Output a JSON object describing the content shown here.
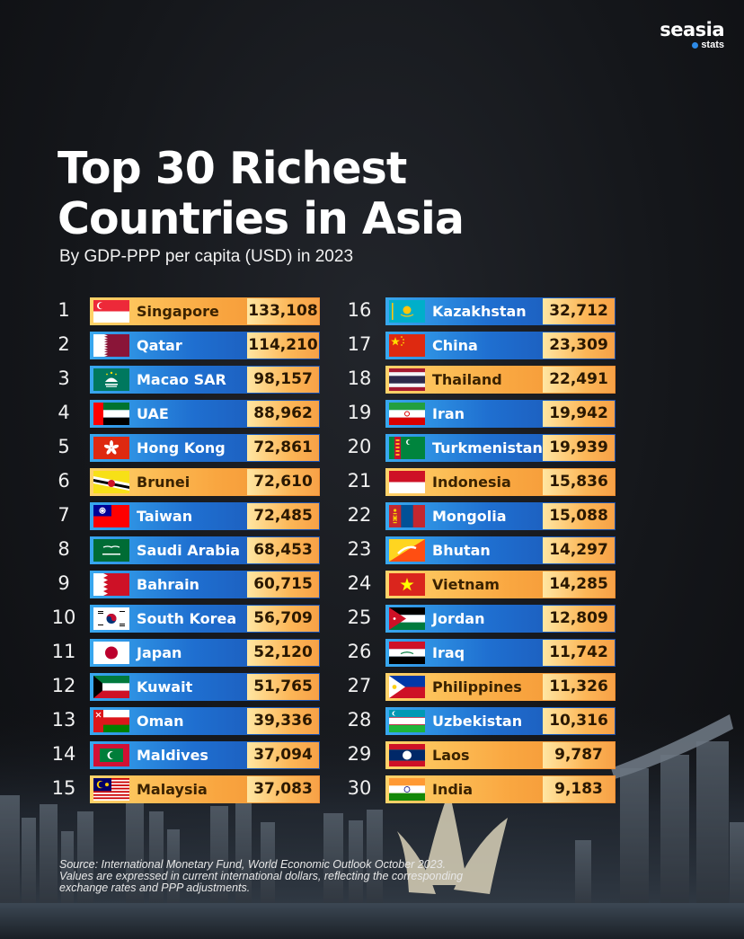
{
  "brand": {
    "name": "seasia",
    "sub": "stats",
    "accent": "#2d8ae6"
  },
  "title": {
    "line1": "Top 30 Richest",
    "line2": "Countries in Asia"
  },
  "subtitle": "By GDP-PPP per capita (USD) in 2023",
  "colors": {
    "blue_bar": "#1f6fd0",
    "orange_bar": "#f9a640",
    "value_box": "#fcb657"
  },
  "countries": [
    {
      "rank": "1",
      "name": "Singapore",
      "value": "133,108",
      "style": "orange",
      "flag": "singapore-flag"
    },
    {
      "rank": "2",
      "name": "Qatar",
      "value": "114,210",
      "style": "blue",
      "flag": "qatar-flag"
    },
    {
      "rank": "3",
      "name": "Macao SAR",
      "value": "98,157",
      "style": "blue",
      "flag": "macao-flag"
    },
    {
      "rank": "4",
      "name": "UAE",
      "value": "88,962",
      "style": "blue",
      "flag": "uae-flag"
    },
    {
      "rank": "5",
      "name": "Hong Kong",
      "value": "72,861",
      "style": "blue",
      "flag": "hong-kong-flag"
    },
    {
      "rank": "6",
      "name": "Brunei",
      "value": "72,610",
      "style": "orange",
      "flag": "brunei-flag"
    },
    {
      "rank": "7",
      "name": "Taiwan",
      "value": "72,485",
      "style": "blue",
      "flag": "taiwan-flag"
    },
    {
      "rank": "8",
      "name": "Saudi Arabia",
      "value": "68,453",
      "style": "blue",
      "flag": "saudi-arabia-flag"
    },
    {
      "rank": "9",
      "name": "Bahrain",
      "value": "60,715",
      "style": "blue",
      "flag": "bahrain-flag"
    },
    {
      "rank": "10",
      "name": "South Korea",
      "value": "56,709",
      "style": "blue",
      "flag": "south-korea-flag"
    },
    {
      "rank": "11",
      "name": "Japan",
      "value": "52,120",
      "style": "blue",
      "flag": "japan-flag"
    },
    {
      "rank": "12",
      "name": "Kuwait",
      "value": "51,765",
      "style": "blue",
      "flag": "kuwait-flag"
    },
    {
      "rank": "13",
      "name": "Oman",
      "value": "39,336",
      "style": "blue",
      "flag": "oman-flag"
    },
    {
      "rank": "14",
      "name": "Maldives",
      "value": "37,094",
      "style": "blue",
      "flag": "maldives-flag"
    },
    {
      "rank": "15",
      "name": "Malaysia",
      "value": "37,083",
      "style": "orange",
      "flag": "malaysia-flag"
    },
    {
      "rank": "16",
      "name": "Kazakhstan",
      "value": "32,712",
      "style": "blue",
      "flag": "kazakhstan-flag"
    },
    {
      "rank": "17",
      "name": "China",
      "value": "23,309",
      "style": "blue",
      "flag": "china-flag"
    },
    {
      "rank": "18",
      "name": "Thailand",
      "value": "22,491",
      "style": "orange",
      "flag": "thailand-flag"
    },
    {
      "rank": "19",
      "name": "Iran",
      "value": "19,942",
      "style": "blue",
      "flag": "iran-flag"
    },
    {
      "rank": "20",
      "name": "Turkmenistan",
      "value": "19,939",
      "style": "blue",
      "flag": "turkmenistan-flag"
    },
    {
      "rank": "21",
      "name": "Indonesia",
      "value": "15,836",
      "style": "orange",
      "flag": "indonesia-flag"
    },
    {
      "rank": "22",
      "name": "Mongolia",
      "value": "15,088",
      "style": "blue",
      "flag": "mongolia-flag"
    },
    {
      "rank": "23",
      "name": "Bhutan",
      "value": "14,297",
      "style": "blue",
      "flag": "bhutan-flag"
    },
    {
      "rank": "24",
      "name": "Vietnam",
      "value": "14,285",
      "style": "orange",
      "flag": "vietnam-flag"
    },
    {
      "rank": "25",
      "name": "Jordan",
      "value": "12,809",
      "style": "blue",
      "flag": "jordan-flag"
    },
    {
      "rank": "26",
      "name": "Iraq",
      "value": "11,742",
      "style": "blue",
      "flag": "iraq-flag"
    },
    {
      "rank": "27",
      "name": "Philippines",
      "value": "11,326",
      "style": "orange",
      "flag": "philippines-flag"
    },
    {
      "rank": "28",
      "name": "Uzbekistan",
      "value": "10,316",
      "style": "blue",
      "flag": "uzbekistan-flag"
    },
    {
      "rank": "29",
      "name": "Laos",
      "value": "9,787",
      "style": "orange",
      "flag": "laos-flag"
    },
    {
      "rank": "30",
      "name": "India",
      "value": "9,183",
      "style": "orange",
      "flag": "india-flag"
    }
  ],
  "source": "Source: International Monetary Fund, World Economic Outlook October 2023. Values are expressed in current international dollars, reflecting the corresponding exchange rates and PPP adjustments."
}
